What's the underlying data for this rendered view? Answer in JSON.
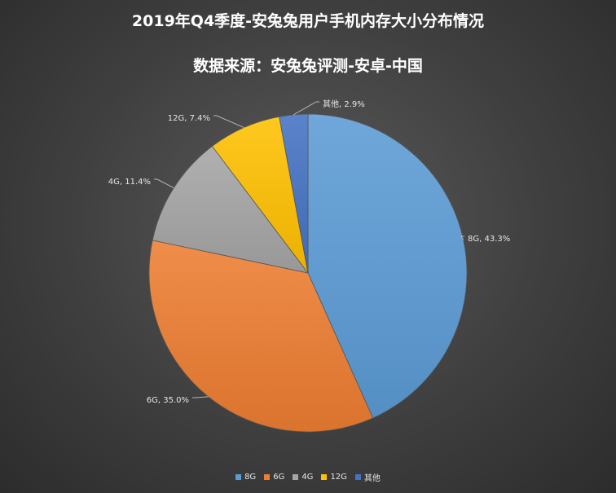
{
  "chart_data": {
    "type": "pie",
    "title": "2019年Q4季度-安兔兔用户手机内存大小分布情况",
    "subtitle": "数据来源：安兔兔评测-安卓-中国",
    "slices": [
      {
        "label": "8G",
        "value": 43.3,
        "display": "8G, 43.3%",
        "color": "#5b9bd5"
      },
      {
        "label": "6G",
        "value": 35.0,
        "display": "6G, 35.0%",
        "color": "#ed7d31"
      },
      {
        "label": "4G",
        "value": 11.4,
        "display": "4G, 11.4%",
        "color": "#a5a5a5"
      },
      {
        "label": "12G",
        "value": 7.4,
        "display": "12G, 7.4%",
        "color": "#ffc000"
      },
      {
        "label": "其他",
        "value": 2.9,
        "display": "其他, 2.9%",
        "color": "#4472c4"
      }
    ],
    "legend": {
      "position": "bottom",
      "items": [
        "8G",
        "6G",
        "4G",
        "12G",
        "其他"
      ]
    },
    "start_angle": "12 o'clock",
    "direction": "clockwise"
  }
}
